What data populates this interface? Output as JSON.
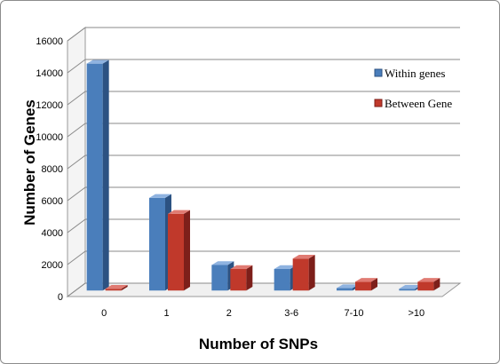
{
  "chart_data": {
    "type": "bar",
    "categories": [
      "0",
      "1",
      "2",
      "3-6",
      "7-10",
      ">10"
    ],
    "series": [
      {
        "name": "Within genes",
        "values": [
          14200,
          5800,
          1600,
          1350,
          150,
          100
        ]
      },
      {
        "name": "Between Gene",
        "values": [
          0,
          4800,
          1350,
          2000,
          550,
          550
        ]
      }
    ],
    "xlabel": "Number of SNPs",
    "ylabel": "Number of Genes",
    "ylim": [
      0,
      16000
    ],
    "yticks": [
      0,
      2000,
      4000,
      6000,
      8000,
      10000,
      12000,
      14000,
      16000
    ],
    "grid": true,
    "legend_position": "right",
    "colors": {
      "Within genes": {
        "front": "#4a7ebb",
        "side": "#2c5282",
        "top": "#8fb3e0"
      },
      "Between Gene": {
        "front": "#c0392b",
        "side": "#7d1f1a",
        "top": "#e07b73"
      }
    }
  }
}
